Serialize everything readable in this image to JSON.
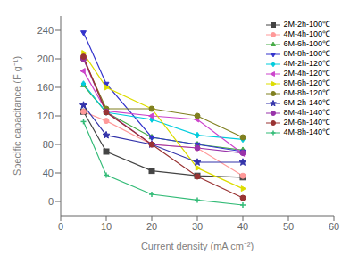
{
  "chart_data": {
    "type": "line",
    "xlabel": "Current density (mA cm⁻²)",
    "ylabel": "Specific capacitance (F g⁻¹)",
    "x": [
      5,
      10,
      20,
      30,
      40
    ],
    "series": [
      {
        "name": "2M-2h-100℃",
        "color": "#444444",
        "marker": "square",
        "values": [
          126,
          70,
          43,
          36,
          34
        ]
      },
      {
        "name": "4M-4h-100℃",
        "color": "#ff9999",
        "marker": "circle",
        "values": [
          126,
          113,
          80,
          75,
          36
        ]
      },
      {
        "name": "6M-6h-100℃",
        "color": "#44aa44",
        "marker": "triangle_up",
        "values": [
          163,
          125,
          90,
          80,
          72
        ]
      },
      {
        "name": "8M-8h-100℃",
        "color": "#3333cc",
        "marker": "triangle_down",
        "values": [
          237,
          165,
          90,
          80,
          70
        ]
      },
      {
        "name": "4M-2h-120℃",
        "color": "#00ccdd",
        "marker": "diamond",
        "values": [
          165,
          125,
          115,
          93,
          87
        ]
      },
      {
        "name": "2M-4h-120℃",
        "color": "#cc44cc",
        "marker": "triangle_left",
        "values": [
          183,
          127,
          120,
          115,
          67
        ]
      },
      {
        "name": "8M-6h-120℃",
        "color": "#dddd00",
        "marker": "triangle_right",
        "values": [
          208,
          160,
          130,
          47,
          18
        ]
      },
      {
        "name": "6M-8h-120℃",
        "color": "#808020",
        "marker": "circle",
        "values": [
          200,
          130,
          130,
          120,
          90
        ]
      },
      {
        "name": "6M-2h-140℃",
        "color": "#3333aa",
        "marker": "star",
        "values": [
          135,
          93,
          80,
          55,
          55
        ]
      },
      {
        "name": "8M-4h-140℃",
        "color": "#9933aa",
        "marker": "circle",
        "values": [
          200,
          126,
          80,
          75,
          68
        ]
      },
      {
        "name": "2M-6h-140℃",
        "color": "#993333",
        "marker": "circle",
        "values": [
          203,
          125,
          80,
          35,
          5
        ]
      },
      {
        "name": "4M-8h-140℃",
        "color": "#33bb77",
        "marker": "plus",
        "values": [
          112,
          37,
          10,
          2,
          -5
        ]
      }
    ],
    "xlim": [
      0,
      60
    ],
    "ylim": [
      -20,
      260
    ],
    "xticks": [
      0,
      10,
      20,
      30,
      40,
      50,
      60
    ],
    "yticks": [
      0,
      40,
      80,
      120,
      160,
      200,
      240
    ],
    "grid": false,
    "legend": "upper right"
  }
}
